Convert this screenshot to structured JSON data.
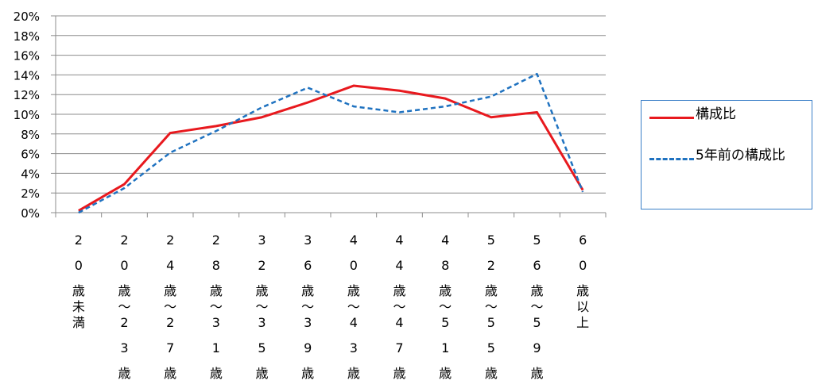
{
  "chart_data": {
    "type": "line",
    "categories": [
      "20歳未満",
      "20歳～23歳",
      "24歳～27歳",
      "28歳～31歳",
      "32歳～35歳",
      "36歳～39歳",
      "40歳～43歳",
      "44歳～47歳",
      "48歳～51歳",
      "52歳～55歳",
      "56歳～59歳",
      "60歳以上"
    ],
    "series": [
      {
        "name": "構成比",
        "color": "#e8191e",
        "style": "solid",
        "values": [
          0.2,
          2.9,
          8.1,
          8.8,
          9.7,
          11.2,
          12.9,
          12.4,
          11.6,
          9.7,
          10.2,
          2.3
        ]
      },
      {
        "name": "5年前の構成比",
        "color": "#1f72c0",
        "style": "dashed",
        "values": [
          0.0,
          2.5,
          6.1,
          8.3,
          10.7,
          12.7,
          10.8,
          10.2,
          10.8,
          11.8,
          14.1,
          2.1
        ]
      }
    ],
    "ylim": [
      0,
      20
    ],
    "ytick_step": 2,
    "ytick_labels": [
      "0%",
      "2%",
      "4%",
      "6%",
      "8%",
      "10%",
      "12%",
      "14%",
      "16%",
      "18%",
      "20%"
    ],
    "grid": true,
    "legend": "right",
    "title": "",
    "xlabel": "",
    "ylabel": ""
  }
}
